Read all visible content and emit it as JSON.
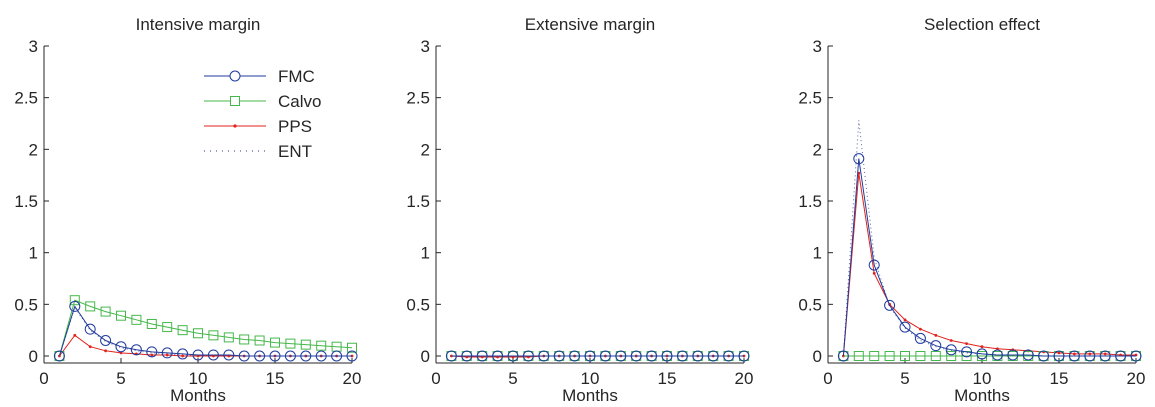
{
  "colors": {
    "FMC": "#1f3b9c",
    "Calvo": "#44b84a",
    "PPS": "#e0231d",
    "ENT": "#2c3a8a",
    "axis": "#262626"
  },
  "legend": {
    "placement": "top-right",
    "entries": [
      "FMC",
      "Calvo",
      "PPS",
      "ENT"
    ]
  },
  "chart_data": [
    {
      "type": "line",
      "title": "Intensive margin",
      "xlabel": "Months",
      "ylabel": "",
      "xlim": [
        0,
        20
      ],
      "ylim": [
        0,
        3
      ],
      "xticks": [
        0,
        5,
        10,
        15,
        20
      ],
      "yticks": [
        0,
        0.5,
        1,
        1.5,
        2,
        2.5,
        3
      ],
      "xtick_labels": [
        "0",
        "5",
        "10",
        "15",
        "20"
      ],
      "ytick_labels": [
        "0",
        "0.5",
        "1",
        "1.5",
        "2",
        "2.5",
        "3"
      ],
      "grid": false,
      "show_legend": true,
      "x": [
        1,
        2,
        3,
        4,
        5,
        6,
        7,
        8,
        9,
        10,
        11,
        12,
        13,
        14,
        15,
        16,
        17,
        18,
        19,
        20
      ],
      "series": [
        {
          "name": "FMC",
          "marker": "circle",
          "values": [
            0.0,
            0.48,
            0.26,
            0.15,
            0.09,
            0.06,
            0.04,
            0.03,
            0.02,
            0.01,
            0.01,
            0.01,
            0.0,
            0.0,
            0.0,
            0.0,
            0.0,
            0.0,
            0.0,
            0.0
          ]
        },
        {
          "name": "Calvo",
          "marker": "square",
          "values": [
            0.0,
            0.54,
            0.48,
            0.43,
            0.39,
            0.35,
            0.31,
            0.28,
            0.25,
            0.22,
            0.2,
            0.18,
            0.16,
            0.15,
            0.13,
            0.12,
            0.11,
            0.1,
            0.09,
            0.08
          ]
        },
        {
          "name": "PPS",
          "marker": "dot",
          "values": [
            0.0,
            0.2,
            0.09,
            0.05,
            0.03,
            0.02,
            0.01,
            0.01,
            0.0,
            0.0,
            0.0,
            0.0,
            0.0,
            0.0,
            0.0,
            0.0,
            0.0,
            0.0,
            0.0,
            0.0
          ]
        },
        {
          "name": "ENT",
          "marker": "dotted",
          "values": [
            0.0,
            0.47,
            0.25,
            0.14,
            0.08,
            0.05,
            0.03,
            0.02,
            0.01,
            0.01,
            0.0,
            0.0,
            0.0,
            0.0,
            0.0,
            0.0,
            0.0,
            0.0,
            0.0,
            0.0
          ]
        }
      ]
    },
    {
      "type": "line",
      "title": "Extensive margin",
      "xlabel": "Months",
      "ylabel": "",
      "xlim": [
        0,
        20
      ],
      "ylim": [
        0,
        3
      ],
      "xticks": [
        0,
        5,
        10,
        15,
        20
      ],
      "yticks": [
        0,
        0.5,
        1,
        1.5,
        2,
        2.5,
        3
      ],
      "xtick_labels": [
        "0",
        "5",
        "10",
        "15",
        "20"
      ],
      "ytick_labels": [
        "0",
        "0.5",
        "1",
        "1.5",
        "2",
        "2.5",
        "3"
      ],
      "grid": false,
      "show_legend": false,
      "x": [
        1,
        2,
        3,
        4,
        5,
        6,
        7,
        8,
        9,
        10,
        11,
        12,
        13,
        14,
        15,
        16,
        17,
        18,
        19,
        20
      ],
      "series": [
        {
          "name": "FMC",
          "marker": "circle",
          "values": [
            0.0,
            0.0,
            0.0,
            0.0,
            0.0,
            0.0,
            0.0,
            0.0,
            0.0,
            0.0,
            0.0,
            0.0,
            0.0,
            0.0,
            0.0,
            0.0,
            0.0,
            0.0,
            0.0,
            0.0
          ]
        },
        {
          "name": "Calvo",
          "marker": "square",
          "values": [
            0.0,
            0.0,
            0.0,
            0.0,
            0.0,
            0.0,
            0.0,
            0.0,
            0.0,
            0.0,
            0.0,
            0.0,
            0.0,
            0.0,
            0.0,
            0.0,
            0.0,
            0.0,
            0.0,
            0.0
          ]
        },
        {
          "name": "PPS",
          "marker": "dot",
          "values": [
            0.0,
            -0.01,
            -0.01,
            -0.01,
            -0.01,
            -0.01,
            0.0,
            0.0,
            0.0,
            0.0,
            0.0,
            0.0,
            0.0,
            0.0,
            0.0,
            0.0,
            0.0,
            0.0,
            0.0,
            0.0
          ]
        },
        {
          "name": "ENT",
          "marker": "dotted",
          "values": [
            0.0,
            0.0,
            0.0,
            0.0,
            0.0,
            0.0,
            0.0,
            0.0,
            0.0,
            0.0,
            0.0,
            0.0,
            0.0,
            0.0,
            0.0,
            0.0,
            0.0,
            0.0,
            0.0,
            0.0
          ]
        }
      ]
    },
    {
      "type": "line",
      "title": "Selection effect",
      "xlabel": "Months",
      "ylabel": "",
      "xlim": [
        0,
        20
      ],
      "ylim": [
        0,
        3
      ],
      "xticks": [
        0,
        5,
        10,
        15,
        20
      ],
      "yticks": [
        0,
        0.5,
        1,
        1.5,
        2,
        2.5,
        3
      ],
      "xtick_labels": [
        "0",
        "5",
        "10",
        "15",
        "20"
      ],
      "ytick_labels": [
        "0",
        "0.5",
        "1",
        "1.5",
        "2",
        "2.5",
        "3"
      ],
      "grid": false,
      "show_legend": false,
      "x": [
        1,
        2,
        3,
        4,
        5,
        6,
        7,
        8,
        9,
        10,
        11,
        12,
        13,
        14,
        15,
        16,
        17,
        18,
        19,
        20
      ],
      "series": [
        {
          "name": "FMC",
          "marker": "circle",
          "values": [
            0.0,
            1.91,
            0.88,
            0.49,
            0.28,
            0.17,
            0.1,
            0.06,
            0.04,
            0.02,
            0.01,
            0.01,
            0.01,
            0.0,
            0.0,
            0.0,
            0.0,
            0.0,
            0.0,
            0.0
          ]
        },
        {
          "name": "Calvo",
          "marker": "square",
          "values": [
            0.0,
            0.0,
            0.0,
            0.0,
            0.0,
            0.0,
            0.0,
            0.0,
            0.0,
            0.0,
            0.0,
            0.0,
            0.0,
            0.0,
            0.0,
            0.0,
            0.0,
            0.0,
            0.0,
            0.0
          ]
        },
        {
          "name": "PPS",
          "marker": "dot",
          "values": [
            0.0,
            1.77,
            0.8,
            0.5,
            0.35,
            0.26,
            0.2,
            0.15,
            0.12,
            0.09,
            0.07,
            0.06,
            0.05,
            0.04,
            0.03,
            0.02,
            0.02,
            0.02,
            0.01,
            0.01
          ]
        },
        {
          "name": "ENT",
          "marker": "dotted",
          "values": [
            0.0,
            2.28,
            0.95,
            0.48,
            0.27,
            0.15,
            0.09,
            0.05,
            0.03,
            0.02,
            0.01,
            0.01,
            0.0,
            0.0,
            0.0,
            0.0,
            0.0,
            0.0,
            0.0,
            0.0
          ]
        }
      ]
    }
  ]
}
